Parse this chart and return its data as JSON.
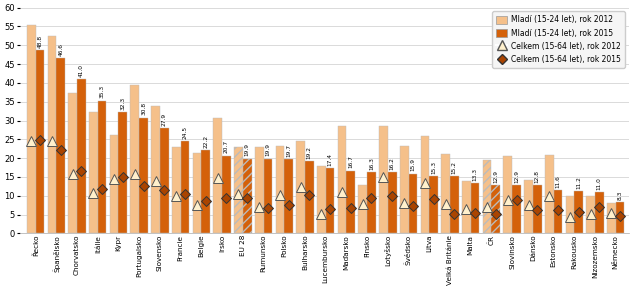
{
  "labels": [
    "Řecko",
    "Španělsko",
    "Chorvatsko",
    "Itálie",
    "Kypr",
    "Portugalsko",
    "Slovensko",
    "Francie",
    "Belgie",
    "Irsko",
    "EU 28",
    "Rumunsko",
    "Polsko",
    "Bulharsko",
    "Lucembursko",
    "Maďarsko",
    "Finsko",
    "Lotyšsko",
    "Švédsko",
    "Litva",
    "Velká Británie",
    "Malta",
    "ČR",
    "Slovinsko",
    "Dánsko",
    "Estonsko",
    "Rakousko",
    "Nizozemsko",
    "Německo"
  ],
  "youth_2012": [
    55.3,
    52.4,
    37.4,
    32.2,
    26.1,
    39.5,
    34.0,
    23.0,
    21.5,
    30.8,
    23.0,
    23.0,
    23.2,
    24.6,
    18.0,
    28.5,
    12.9,
    28.5,
    23.3,
    26.0,
    21.1,
    14.0,
    19.5,
    20.6,
    14.2,
    20.9,
    9.9,
    9.9,
    8.1
  ],
  "youth_2015": [
    48.8,
    46.6,
    41.0,
    35.3,
    32.3,
    30.8,
    27.9,
    24.5,
    22.2,
    20.7,
    19.9,
    19.9,
    19.7,
    19.2,
    17.4,
    16.7,
    16.3,
    16.2,
    15.9,
    15.3,
    15.2,
    13.3,
    12.9,
    12.9,
    12.8,
    11.6,
    11.2,
    11.0,
    8.3
  ],
  "total_2012": [
    24.5,
    24.5,
    15.9,
    10.7,
    14.4,
    15.7,
    14.0,
    10.0,
    7.6,
    14.7,
    10.5,
    7.0,
    10.1,
    12.3,
    5.1,
    11.0,
    7.7,
    15.0,
    8.0,
    13.3,
    7.9,
    6.4,
    7.0,
    8.9,
    7.5,
    10.0,
    4.3,
    5.3,
    5.5
  ],
  "total_2015": [
    24.9,
    22.1,
    16.6,
    11.9,
    15.0,
    12.6,
    11.5,
    10.4,
    8.5,
    9.4,
    9.4,
    6.8,
    7.5,
    10.1,
    6.5,
    6.8,
    9.4,
    9.9,
    7.4,
    9.1,
    5.3,
    5.4,
    5.1,
    9.0,
    6.2,
    6.2,
    5.7,
    6.9,
    4.6
  ],
  "hatched_indices": [
    10,
    22
  ],
  "color_youth_2012": "#F5C08A",
  "color_youth_2015": "#D4610A",
  "ylim": [
    0,
    60
  ],
  "yticks": [
    0,
    5,
    10,
    15,
    20,
    25,
    30,
    35,
    40,
    45,
    50,
    55,
    60
  ],
  "legend_labels": [
    "Mladí (15-24 let), rok 2012",
    "Mladí (15-24 let), rok 2015",
    "Celkem (15-64 let), rok 2012",
    "Celkem (15-64 let), rok 2015"
  ]
}
